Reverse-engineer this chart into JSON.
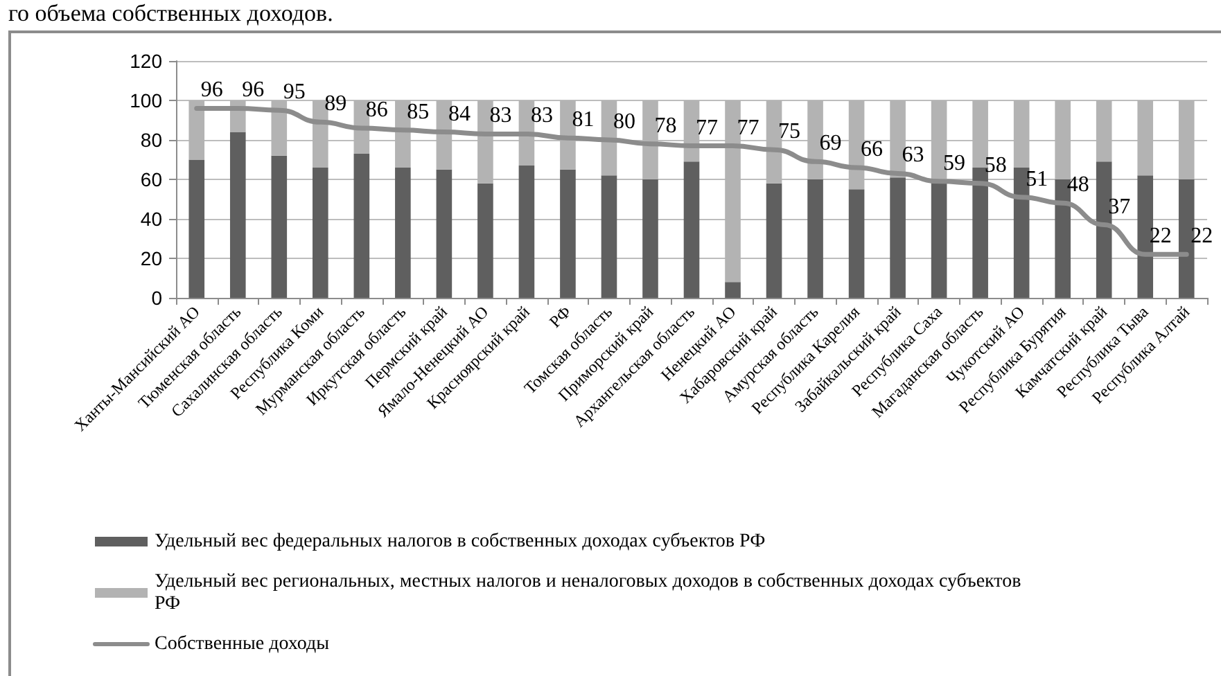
{
  "chart_data": {
    "type": "bar",
    "stacked": true,
    "annotations": [
      "го объема собственных доходов."
    ],
    "categories": [
      "Ханты-Мансийский АО",
      "Тюменская область",
      "Сахалинская область",
      "Республика Коми",
      "Мурманская область",
      "Иркутская область",
      "Пермский край",
      "Ямало-Ненецкий АО",
      "Красноярский край",
      "РФ",
      "Томская область",
      "Приморский край",
      "Архангельская область",
      "Ненецкий АО",
      "Хабаровский край",
      "Амурская область",
      "Республика Карелия",
      "Забайкальский край",
      "Республика Саха",
      "Магаданская область",
      "Чукотский АО",
      "Республика Бурятия",
      "Камчатский край",
      "Республика Тыва",
      "Республика Алтай"
    ],
    "series": [
      {
        "name": "Удельный вес федеральных налогов в собственных доходах субъектов РФ",
        "color": "#5f5f5f",
        "values": [
          70,
          84,
          72,
          66,
          73,
          66,
          65,
          58,
          67,
          65,
          62,
          60,
          69,
          8,
          58,
          60,
          55,
          61,
          59,
          66,
          66,
          60,
          69,
          62,
          60
        ]
      },
      {
        "name": "Удельный вес региональных, местных налогов и неналоговых доходов в собственных доходах субъектов РФ",
        "color": "#b3b3b3",
        "values": [
          30,
          16,
          28,
          34,
          27,
          34,
          35,
          42,
          33,
          35,
          38,
          40,
          31,
          92,
          42,
          40,
          45,
          39,
          41,
          34,
          34,
          40,
          31,
          38,
          40
        ]
      },
      {
        "name": "Собственные доходы",
        "type": "line",
        "color": "#8c8c8c",
        "marker": "none",
        "values": [
          96,
          96,
          95,
          89,
          86,
          85,
          84,
          83,
          83,
          81,
          80,
          78,
          77,
          77,
          75,
          69,
          66,
          63,
          59,
          58,
          51,
          48,
          37,
          22,
          22
        ],
        "value_labels": [
          "96",
          "96",
          "95",
          "89",
          "86",
          "85",
          "84",
          "83",
          "83",
          "81",
          "80",
          "78",
          "77",
          "77",
          "75",
          "69",
          "66",
          "63",
          "59",
          "58",
          "51",
          "48",
          "37",
          "22",
          "22"
        ]
      }
    ],
    "ylim": [
      0,
      120
    ],
    "yticks": [
      0,
      20,
      40,
      60,
      80,
      100,
      120
    ],
    "grid": "y",
    "legend": "bottom"
  }
}
